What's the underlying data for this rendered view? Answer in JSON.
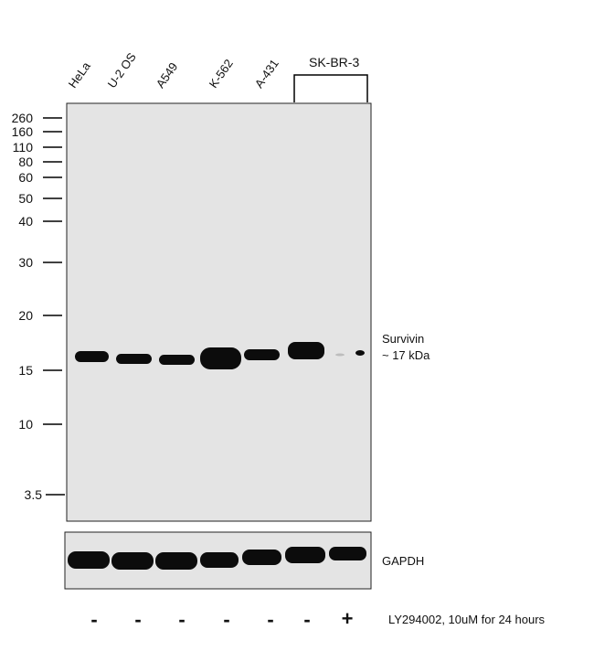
{
  "lanes": [
    "HeLa",
    "U-2 OS",
    "A549",
    "K-562",
    "A-431"
  ],
  "group_label": "SK-BR-3",
  "mw_markers": [
    "260",
    "160",
    "110",
    "80",
    "60",
    "50",
    "40",
    "30",
    "20",
    "15",
    "10",
    "3.5"
  ],
  "target_label_line1": "Survivin",
  "target_label_line2": "~ 17 kDa",
  "loading_control": "GAPDH",
  "treatment_symbols": [
    "-",
    "-",
    "-",
    "-",
    "-",
    "-",
    "+"
  ],
  "treatment_label": "LY294002, 10uM for 24 hours",
  "colors": {
    "membrane": "#e4e4e4",
    "band": "#0c0c0c"
  }
}
